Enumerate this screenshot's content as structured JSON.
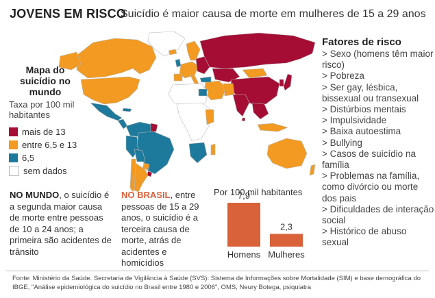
{
  "title": "JOVENS EM RISCO",
  "subtitle": "Suicídio é maior causa de morte em mulheres de 15 a 29 anos",
  "colors": {
    "high": "#a50d35",
    "mid": "#f29a21",
    "low": "#1e7a9c",
    "nodata": "#ffffff",
    "border": "#b8b8b8",
    "bar": "#d9623b"
  },
  "legend": {
    "title": "Mapa do suicídio no mundo",
    "subtitle": "Taxa por 100 mil habitantes",
    "items": [
      {
        "label": "mais de 13",
        "color": "#a50d35"
      },
      {
        "label": "entre 6,5 e 13",
        "color": "#f29a21"
      },
      {
        "label": "6,5",
        "color": "#1e7a9c"
      },
      {
        "label": "sem dados",
        "color": "#ffffff"
      }
    ]
  },
  "risk_factors": {
    "title": "Fatores de risco",
    "items": [
      "> Sexo (homens têm maior risco)",
      "> Pobreza",
      "> Ser gay, lésbica, bissexual ou transexual",
      "> Distúrbios mentais",
      "> Impulsividade",
      "> Baixa autoestima",
      "> Bullying",
      "> Casos de suicídio na família",
      "> Problemas na família, como divórcio ou morte dos pais",
      "> Dificuldades de interação social",
      "> Histórico de abuso sexual"
    ]
  },
  "world_text": {
    "lead": "NO MUNDO",
    "body": ", o suicídio é a segunda maior causa de morte entre pessoas de 10 a 24 anos; a primeira são acidentes de trânsito"
  },
  "brazil_text": {
    "lead": "NO BRASIL",
    "body": ", entre pessoas de 15 a 29 anos, o suicídio é a terceira causa de morte, atrás de acidentes e homicídios"
  },
  "chart_data": {
    "type": "bar",
    "title": "Por 100 mil habitantes",
    "categories": [
      "Homens",
      "Mulheres"
    ],
    "values": [
      7.9,
      2.3
    ],
    "value_labels": [
      "7,9",
      "2,3"
    ],
    "ylim": [
      0,
      7.9
    ]
  },
  "source": "Fonte: Ministério da Saúde. Secretaria de Vigilância à Saúde (SVS): Sistema de Informações sobre Mortalidade (SIM) e base demográfica do IBGE, \"Análise epidemiológica do suicídio no Brasil entre 1980 e 2006\", OMS, Neury Botega, psiquiatra"
}
